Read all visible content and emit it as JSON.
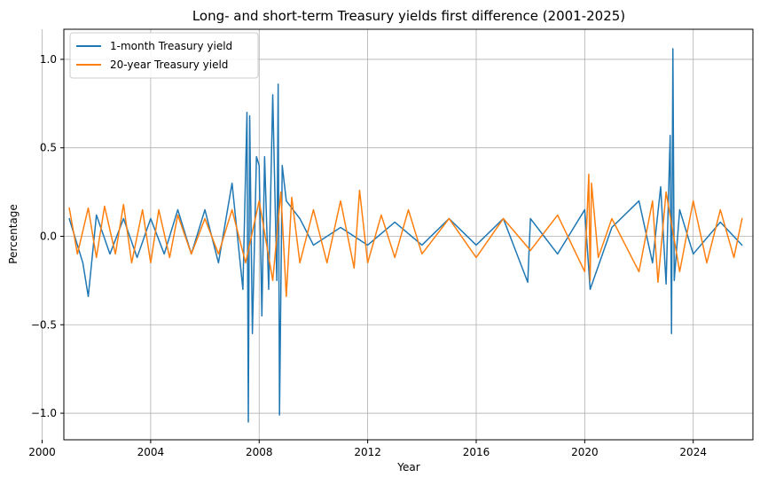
{
  "chart_data": {
    "type": "line",
    "title": "Long- and short-term Treasury yields first difference (2001-2025)",
    "xlabel": "Year",
    "ylabel": "Percentage",
    "xlim": [
      2000.8,
      2026.2
    ],
    "ylim": [
      -1.15,
      1.17
    ],
    "xticks": [
      2000,
      2004,
      2008,
      2012,
      2016,
      2020,
      2024
    ],
    "xtick_labels": [
      "2000",
      "2004",
      "2008",
      "2012",
      "2016",
      "2020",
      "2024"
    ],
    "yticks": [
      -1.0,
      -0.5,
      0.0,
      0.5,
      1.0
    ],
    "ytick_labels": [
      "−1.0",
      "−0.5",
      "0.0",
      "0.5",
      "1.0"
    ],
    "grid": true,
    "legend_position": "upper-left",
    "series": [
      {
        "name": "1-month Treasury yield",
        "color": "#1f77b4",
        "x": [
          2001.0,
          2001.5,
          2001.7,
          2002.0,
          2002.5,
          2003.0,
          2003.5,
          2004.0,
          2004.5,
          2005.0,
          2005.5,
          2006.0,
          2006.5,
          2007.0,
          2007.4,
          2007.55,
          2007.6,
          2007.65,
          2007.75,
          2007.9,
          2008.0,
          2008.1,
          2008.2,
          2008.35,
          2008.5,
          2008.65,
          2008.7,
          2008.75,
          2008.85,
          2009.0,
          2009.5,
          2010.0,
          2011.0,
          2012.0,
          2013.0,
          2014.0,
          2015.0,
          2016.0,
          2017.0,
          2017.9,
          2018.0,
          2019.0,
          2020.0,
          2020.2,
          2021.0,
          2022.0,
          2022.5,
          2022.8,
          2023.0,
          2023.15,
          2023.2,
          2023.25,
          2023.3,
          2023.5,
          2024.0,
          2025.0,
          2025.8
        ],
        "values": [
          0.1,
          -0.15,
          -0.34,
          0.12,
          -0.1,
          0.1,
          -0.12,
          0.1,
          -0.1,
          0.15,
          -0.1,
          0.15,
          -0.15,
          0.3,
          -0.3,
          0.7,
          -1.05,
          0.68,
          -0.55,
          0.45,
          0.4,
          -0.45,
          0.45,
          -0.3,
          0.8,
          -0.25,
          0.86,
          -1.01,
          0.4,
          0.2,
          0.1,
          -0.05,
          0.05,
          -0.05,
          0.08,
          -0.05,
          0.1,
          -0.05,
          0.1,
          -0.26,
          0.1,
          -0.1,
          0.15,
          -0.3,
          0.05,
          0.2,
          -0.15,
          0.28,
          -0.27,
          0.57,
          -0.55,
          1.06,
          -0.25,
          0.15,
          -0.1,
          0.08,
          -0.05
        ]
      },
      {
        "name": "20-year Treasury yield",
        "color": "#ff7f0e",
        "x": [
          2001.0,
          2001.3,
          2001.7,
          2002.0,
          2002.3,
          2002.7,
          2003.0,
          2003.3,
          2003.7,
          2004.0,
          2004.3,
          2004.7,
          2005.0,
          2005.5,
          2006.0,
          2006.5,
          2007.0,
          2007.5,
          2008.0,
          2008.5,
          2008.8,
          2009.0,
          2009.2,
          2009.5,
          2010.0,
          2010.5,
          2011.0,
          2011.5,
          2011.7,
          2012.0,
          2012.5,
          2013.0,
          2013.5,
          2014.0,
          2015.0,
          2016.0,
          2017.0,
          2018.0,
          2019.0,
          2020.0,
          2020.15,
          2020.2,
          2020.25,
          2020.5,
          2021.0,
          2022.0,
          2022.5,
          2022.7,
          2023.0,
          2023.5,
          2024.0,
          2024.5,
          2025.0,
          2025.5,
          2025.8
        ],
        "values": [
          0.16,
          -0.1,
          0.16,
          -0.12,
          0.17,
          -0.1,
          0.18,
          -0.15,
          0.15,
          -0.15,
          0.15,
          -0.12,
          0.12,
          -0.1,
          0.1,
          -0.1,
          0.15,
          -0.15,
          0.2,
          -0.25,
          0.25,
          -0.34,
          0.22,
          -0.15,
          0.15,
          -0.15,
          0.2,
          -0.18,
          0.26,
          -0.15,
          0.12,
          -0.12,
          0.15,
          -0.1,
          0.1,
          -0.12,
          0.1,
          -0.08,
          0.12,
          -0.2,
          0.35,
          -0.25,
          0.3,
          -0.12,
          0.1,
          -0.2,
          0.2,
          -0.26,
          0.25,
          -0.2,
          0.2,
          -0.15,
          0.15,
          -0.12,
          0.1
        ]
      }
    ]
  }
}
